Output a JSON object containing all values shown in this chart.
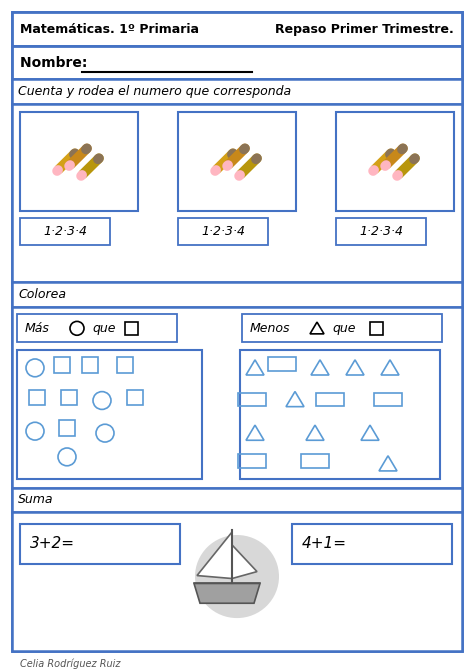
{
  "title_left": "Matemáticas. 1º Primaria",
  "title_right": "Repaso Primer Trimestre.",
  "nombre_label": "Nombre: ",
  "section1": "Cuenta y rodea el numero que corresponda",
  "numbers_label": "1·2·3·4",
  "section2": "Colorea",
  "mas_label": "Más",
  "que_label": "que",
  "menos_label": "Menos",
  "section3": "Suma",
  "sum1": "3+2=",
  "sum2": "4+1=",
  "footer": "Celia Rodríguez Ruiz",
  "blue": "#4472C4",
  "light_blue": "#5B9BD5",
  "bg": "#FFFFFF",
  "border_color": "#4472C4",
  "pencil_colors": [
    "#D4A017",
    "#C8881A",
    "#B8960C"
  ],
  "boat_gray": "#A0A0A0",
  "boat_light": "#C8C8C8",
  "boat_circle": "#D8D8D8"
}
